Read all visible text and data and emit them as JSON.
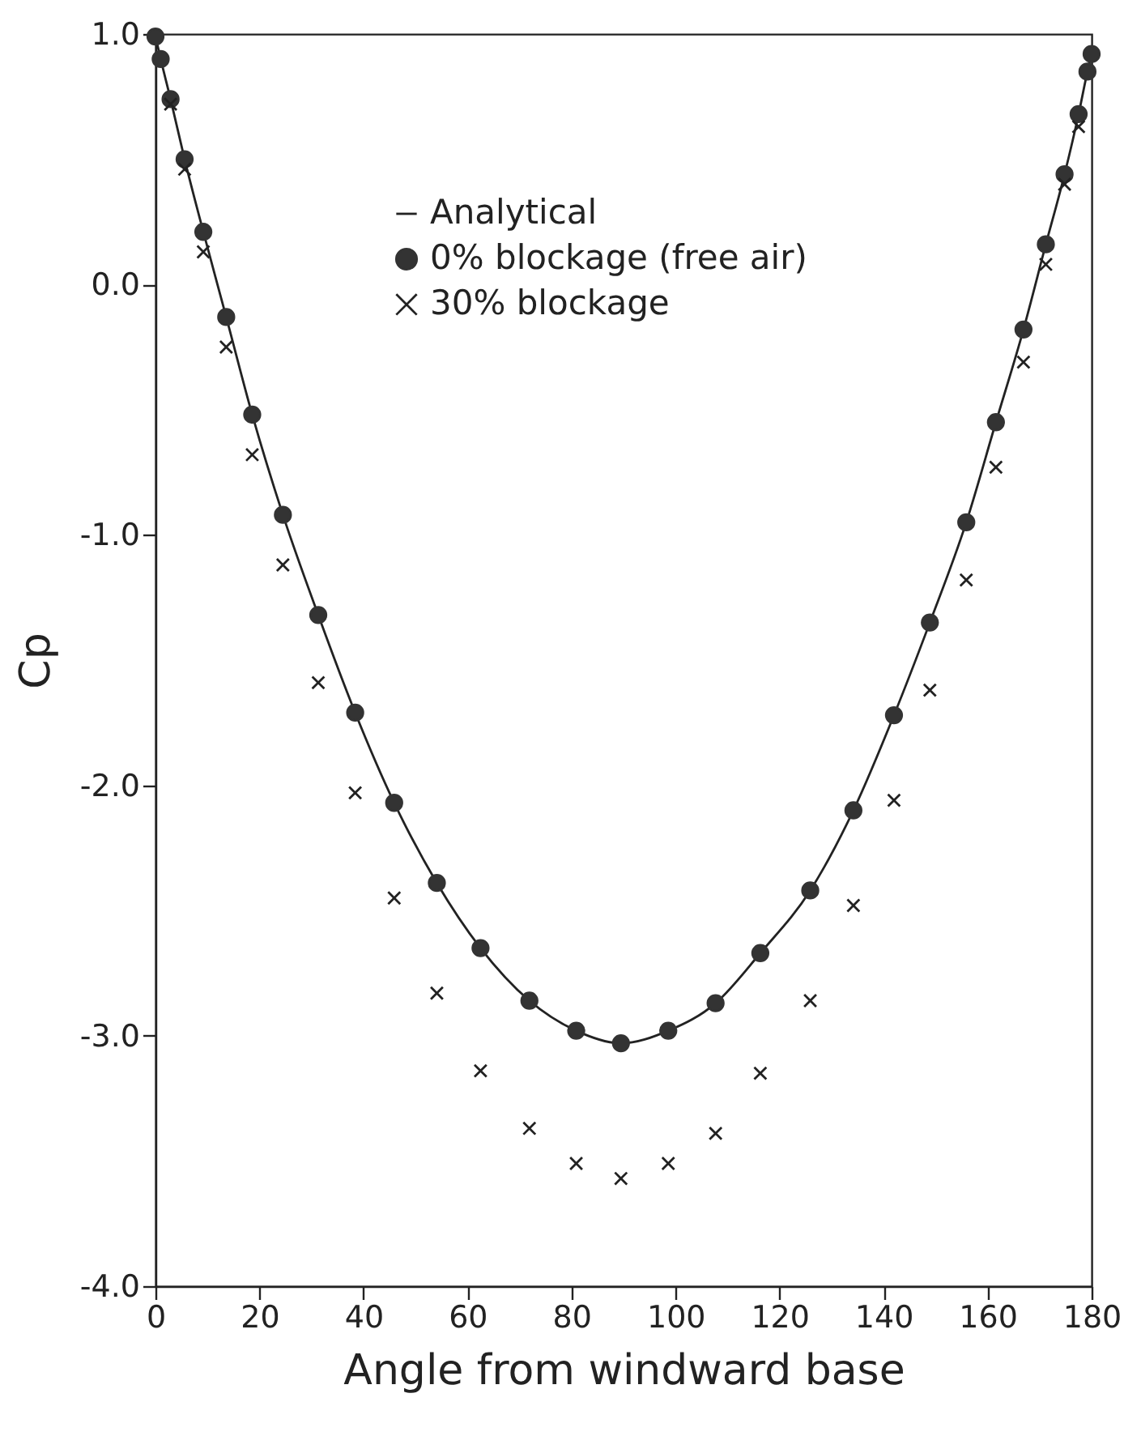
{
  "chart_data": {
    "type": "line",
    "xlabel": "Angle from windward base",
    "ylabel": "Cp",
    "x": [
      0,
      1,
      2.9,
      5.6,
      9.2,
      13.6,
      18.6,
      24.5,
      31.3,
      38.4,
      45.9,
      54.1,
      62.5,
      71.9,
      80.9,
      89.5,
      98.6,
      107.7,
      116.3,
      125.9,
      134.2,
      142,
      148.9,
      155.9,
      161.6,
      166.9,
      171.2,
      174.8,
      177.5,
      179.2,
      180
    ],
    "series": [
      {
        "name": "Analytical",
        "color": "#222222",
        "marker": "none",
        "line_style": "solid",
        "values": [
          0.99,
          0.9,
          0.74,
          0.5,
          0.21,
          -0.13,
          -0.52,
          -0.92,
          -1.32,
          -1.71,
          -2.07,
          -2.39,
          -2.65,
          -2.86,
          -2.98,
          -3.03,
          -2.98,
          -2.87,
          -2.67,
          -2.42,
          -2.1,
          -1.72,
          -1.35,
          -0.95,
          -0.55,
          -0.18,
          0.16,
          0.44,
          0.68,
          0.85,
          0.92
        ]
      },
      {
        "name": "0% blockage (free air)",
        "type": "scatter",
        "color": "#333333",
        "marker": "circle",
        "values": [
          0.99,
          0.9,
          0.74,
          0.5,
          0.21,
          -0.13,
          -0.52,
          -0.92,
          -1.32,
          -1.71,
          -2.07,
          -2.39,
          -2.65,
          -2.86,
          -2.98,
          -3.03,
          -2.98,
          -2.87,
          -2.67,
          -2.42,
          -2.1,
          -1.72,
          -1.35,
          -0.95,
          -0.55,
          -0.18,
          0.16,
          0.44,
          0.68,
          0.85,
          0.92
        ]
      },
      {
        "name": "30% blockage",
        "type": "scatter",
        "color": "#222222",
        "marker": "cross",
        "values": [
          null,
          null,
          0.72,
          0.46,
          0.13,
          -0.25,
          -0.68,
          -1.12,
          -1.59,
          -2.03,
          -2.45,
          -2.83,
          -3.14,
          -3.37,
          -3.51,
          -3.57,
          -3.51,
          -3.39,
          -3.15,
          -2.86,
          -2.48,
          -2.06,
          -1.62,
          -1.18,
          -0.73,
          -0.31,
          0.08,
          0.4,
          0.63,
          null,
          null
        ]
      }
    ],
    "xlim": [
      0,
      180
    ],
    "xticks": [
      0,
      20,
      40,
      60,
      80,
      100,
      120,
      140,
      160,
      180
    ],
    "ylim": [
      -4,
      1
    ],
    "yticks": [
      {
        "value": -4,
        "label": "-4.0"
      },
      {
        "value": -3,
        "label": "-3.0"
      },
      {
        "value": -2,
        "label": "-2.0"
      },
      {
        "value": -1,
        "label": "-1.0"
      },
      {
        "value": 0,
        "label": "0.0"
      },
      {
        "value": 1,
        "label": "1.0"
      }
    ],
    "grid": false,
    "legend": "top"
  }
}
